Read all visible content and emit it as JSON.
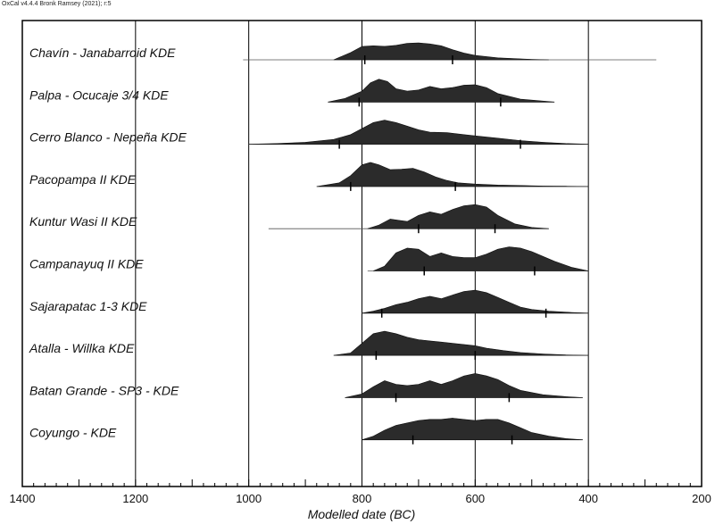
{
  "header": {
    "software": "OxCal v4.4.4 Bronk Ramsey (2021); r:5"
  },
  "chart_data": {
    "type": "area",
    "title": "",
    "xlabel": "Modelled date (BC)",
    "ylabel": "",
    "xlim": [
      1400,
      200
    ],
    "x_ticks": [
      1400,
      1200,
      1000,
      800,
      600,
      400,
      200
    ],
    "grid": true,
    "series": [
      {
        "name": "Chavín - Janabarroid KDE",
        "range": [
          1010,
          280
        ],
        "hpd": [
          795,
          640
        ],
        "x": [
          850,
          820,
          800,
          780,
          760,
          740,
          720,
          700,
          680,
          660,
          640,
          620,
          600,
          560,
          500,
          470
        ],
        "density": [
          0,
          0.3,
          0.55,
          0.58,
          0.56,
          0.6,
          0.68,
          0.7,
          0.66,
          0.58,
          0.42,
          0.28,
          0.18,
          0.08,
          0.02,
          0
        ]
      },
      {
        "name": "Palpa - Ocucaje 3/4 KDE",
        "range": [
          860,
          460
        ],
        "hpd": [
          805,
          555
        ],
        "x": [
          860,
          830,
          800,
          785,
          770,
          755,
          740,
          720,
          700,
          680,
          660,
          640,
          620,
          600,
          580,
          560,
          520,
          460
        ],
        "density": [
          0,
          0.15,
          0.45,
          0.8,
          0.95,
          0.85,
          0.55,
          0.45,
          0.5,
          0.65,
          0.55,
          0.6,
          0.7,
          0.72,
          0.6,
          0.35,
          0.12,
          0
        ]
      },
      {
        "name": "Cerro Blanco - Nepeña KDE",
        "range": [
          1000,
          400
        ],
        "hpd": [
          840,
          520
        ],
        "x": [
          1000,
          950,
          900,
          850,
          820,
          800,
          780,
          760,
          740,
          720,
          700,
          680,
          650,
          620,
          600,
          560,
          520,
          480,
          440,
          400
        ],
        "density": [
          0,
          0.03,
          0.08,
          0.2,
          0.4,
          0.65,
          0.9,
          1.0,
          0.9,
          0.75,
          0.6,
          0.5,
          0.48,
          0.4,
          0.35,
          0.25,
          0.15,
          0.08,
          0.03,
          0
        ]
      },
      {
        "name": "Pacopampa II KDE",
        "range": [
          880,
          400
        ],
        "hpd": [
          820,
          635
        ],
        "x": [
          880,
          840,
          820,
          800,
          785,
          770,
          750,
          730,
          710,
          690,
          670,
          650,
          630,
          600,
          560,
          520,
          480,
          440,
          400
        ],
        "density": [
          0,
          0.15,
          0.45,
          0.9,
          1.0,
          0.9,
          0.7,
          0.72,
          0.75,
          0.6,
          0.4,
          0.25,
          0.15,
          0.1,
          0.06,
          0.04,
          0.02,
          0.01,
          0
        ]
      },
      {
        "name": "Kuntur Wasi II KDE",
        "range": [
          965,
          470
        ],
        "hpd": [
          700,
          565
        ],
        "x": [
          790,
          770,
          750,
          735,
          720,
          700,
          680,
          660,
          640,
          620,
          600,
          580,
          560,
          530,
          500,
          470
        ],
        "density": [
          0,
          0.15,
          0.4,
          0.35,
          0.3,
          0.55,
          0.7,
          0.6,
          0.8,
          0.95,
          1.0,
          0.9,
          0.55,
          0.2,
          0.05,
          0
        ]
      },
      {
        "name": "Campanayuq II KDE",
        "range": [
          790,
          400
        ],
        "hpd": [
          690,
          495
        ],
        "x": [
          780,
          760,
          740,
          720,
          700,
          680,
          660,
          640,
          620,
          600,
          580,
          560,
          540,
          520,
          500,
          480,
          460,
          430,
          400
        ],
        "density": [
          0,
          0.2,
          0.75,
          0.95,
          0.9,
          0.6,
          0.75,
          0.6,
          0.55,
          0.55,
          0.7,
          0.9,
          1.0,
          0.95,
          0.8,
          0.6,
          0.4,
          0.15,
          0
        ]
      },
      {
        "name": "Sajarapatac 1-3 KDE",
        "range": [
          800,
          400
        ],
        "hpd": [
          765,
          475
        ],
        "x": [
          800,
          780,
          760,
          740,
          720,
          700,
          680,
          660,
          640,
          620,
          600,
          580,
          560,
          540,
          520,
          500,
          470,
          430,
          400
        ],
        "density": [
          0,
          0.08,
          0.2,
          0.35,
          0.45,
          0.6,
          0.7,
          0.6,
          0.75,
          0.9,
          0.95,
          0.85,
          0.65,
          0.45,
          0.25,
          0.15,
          0.08,
          0.03,
          0
        ]
      },
      {
        "name": "Atalla - Willka KDE",
        "range": [
          850,
          400
        ],
        "hpd": [
          775,
          600
        ],
        "x": [
          850,
          820,
          800,
          780,
          760,
          740,
          720,
          700,
          680,
          660,
          640,
          620,
          600,
          580,
          550,
          520,
          480,
          440,
          400
        ],
        "density": [
          0,
          0.1,
          0.5,
          0.9,
          1.0,
          0.9,
          0.75,
          0.65,
          0.6,
          0.55,
          0.5,
          0.45,
          0.4,
          0.3,
          0.2,
          0.12,
          0.06,
          0.02,
          0
        ]
      },
      {
        "name": "Batan Grande - SP3 - KDE",
        "range": [
          830,
          410
        ],
        "hpd": [
          740,
          540
        ],
        "x": [
          830,
          800,
          780,
          760,
          740,
          720,
          700,
          680,
          660,
          640,
          620,
          600,
          580,
          560,
          540,
          520,
          480,
          440,
          410
        ],
        "density": [
          0,
          0.15,
          0.45,
          0.7,
          0.55,
          0.5,
          0.55,
          0.7,
          0.55,
          0.7,
          0.9,
          1.0,
          0.9,
          0.75,
          0.5,
          0.3,
          0.12,
          0.04,
          0
        ]
      },
      {
        "name": "Coyungo - KDE",
        "range": [
          800,
          410
        ],
        "hpd": [
          710,
          535
        ],
        "x": [
          800,
          780,
          760,
          740,
          720,
          700,
          680,
          660,
          640,
          620,
          600,
          580,
          560,
          540,
          520,
          500,
          470,
          440,
          410
        ],
        "density": [
          0,
          0.15,
          0.4,
          0.6,
          0.7,
          0.8,
          0.85,
          0.85,
          0.9,
          0.85,
          0.8,
          0.85,
          0.85,
          0.7,
          0.5,
          0.3,
          0.15,
          0.05,
          0
        ]
      }
    ]
  }
}
